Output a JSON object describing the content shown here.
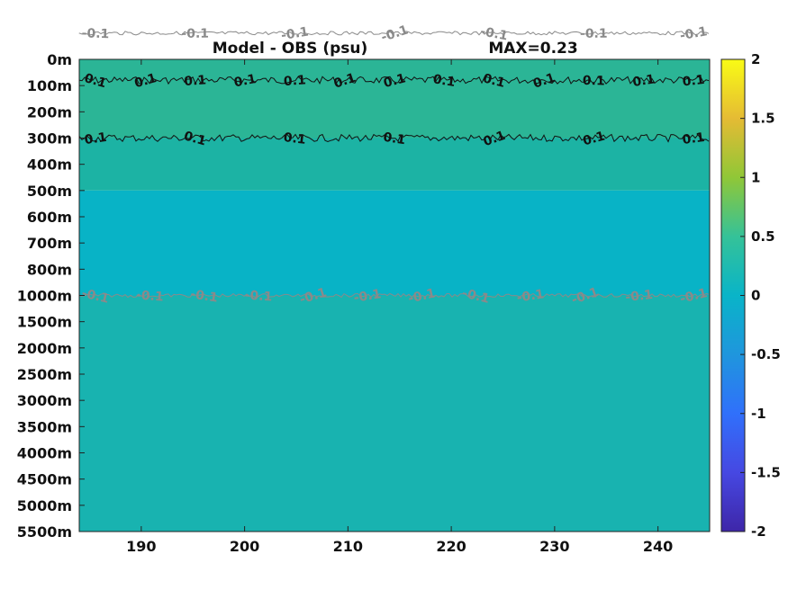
{
  "chart_data": {
    "type": "heatmap",
    "title": "Model - OBS (psu)",
    "subtitle": "MAX=0.23",
    "x": {
      "ticks": [
        190,
        200,
        210,
        220,
        230,
        240
      ],
      "range": [
        184,
        245
      ]
    },
    "y": {
      "ticks": [
        "0m",
        "100m",
        "200m",
        "300m",
        "400m",
        "500m",
        "600m",
        "700m",
        "800m",
        "1000m",
        "1500m",
        "2000m",
        "2500m",
        "3000m",
        "3500m",
        "4000m",
        "4500m",
        "5000m",
        "5500m"
      ],
      "scale": "stretched depth (upper 1000m expanded)"
    },
    "colorbar": {
      "range": [
        -2,
        2
      ],
      "ticks": [
        "2",
        "1.5",
        "1",
        "0.5",
        "0",
        "-0.5",
        "-1",
        "-1.5",
        "-2"
      ],
      "colormap": "parula"
    },
    "field_bands": [
      {
        "depth": [
          "0m",
          "300m"
        ],
        "value": 0.15,
        "color": "#2bb596"
      },
      {
        "depth": [
          "300m",
          "500m"
        ],
        "value": 0.07,
        "color": "#1cb3a4"
      },
      {
        "depth": [
          "500m",
          "1000m"
        ],
        "value": -0.05,
        "color": "#08b3c6"
      },
      {
        "depth": [
          "1000m",
          "5500m"
        ],
        "value": 0.0,
        "color": "#18b3b0"
      }
    ],
    "contours": [
      {
        "level": "0.1",
        "depth": "100m",
        "color": "#111111",
        "labels": [
          "0.1",
          "0.1",
          "0.1",
          "0.1",
          "0.1",
          "0.1",
          "0.1",
          "0.1",
          "0.1",
          "0.1",
          "0.1",
          "0.1",
          "0.1"
        ]
      },
      {
        "level": "0.1",
        "depth": "300m",
        "color": "#111111",
        "labels": [
          "0.1",
          "0.1",
          "0.1",
          "0.1",
          "0.1",
          "0.1",
          "0.1"
        ]
      },
      {
        "level": "-0.1",
        "depth": "550m",
        "color": "#8a8a8a",
        "labels": [
          "-0.1",
          "-0.1",
          "-0.1",
          "-0.1",
          "-0.1",
          "-0.1",
          "-0.1"
        ]
      },
      {
        "level": "-0.1",
        "depth": "1000m",
        "color": "#8a8a8a",
        "labels": [
          "-0.1",
          "-0.1",
          "-0.1",
          "-0.1",
          "-0.1",
          "-0.1",
          "-0.1",
          "-0.1",
          "-0.1",
          "-0.1",
          "-0.1",
          "-0.1"
        ]
      }
    ]
  }
}
